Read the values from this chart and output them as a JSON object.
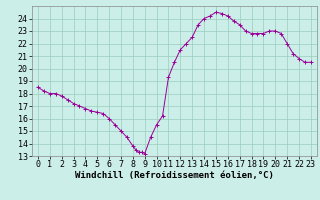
{
  "title": "",
  "xlabel": "Windchill (Refroidissement éolien,°C)",
  "background_color": "#cceee8",
  "line_color": "#990099",
  "marker_color": "#990099",
  "xlim": [
    -0.5,
    23.5
  ],
  "ylim": [
    13,
    25
  ],
  "yticks": [
    13,
    14,
    15,
    16,
    17,
    18,
    19,
    20,
    21,
    22,
    23,
    24
  ],
  "xticks": [
    0,
    1,
    2,
    3,
    4,
    5,
    6,
    7,
    8,
    9,
    10,
    11,
    12,
    13,
    14,
    15,
    16,
    17,
    18,
    19,
    20,
    21,
    22,
    23
  ],
  "data_x": [
    0,
    0.5,
    1,
    1.5,
    2,
    2.5,
    3,
    3.5,
    4,
    4.5,
    5,
    5.5,
    6,
    6.5,
    7,
    7.5,
    8,
    8.25,
    8.5,
    8.75,
    9,
    9.5,
    10,
    10.5,
    11,
    11.5,
    12,
    12.5,
    13,
    13.5,
    14,
    14.5,
    15,
    15.5,
    16,
    16.5,
    17,
    17.5,
    18,
    18.5,
    19,
    19.5,
    20,
    20.5,
    21,
    21.5,
    22,
    22.5,
    23
  ],
  "data_y": [
    18.5,
    18.2,
    18.0,
    18.0,
    17.8,
    17.5,
    17.2,
    17.0,
    16.8,
    16.6,
    16.5,
    16.4,
    16.0,
    15.5,
    15.0,
    14.5,
    13.8,
    13.5,
    13.3,
    13.3,
    13.2,
    14.5,
    15.5,
    16.2,
    19.3,
    20.5,
    21.5,
    22.0,
    22.5,
    23.5,
    24.0,
    24.2,
    24.5,
    24.4,
    24.2,
    23.8,
    23.5,
    23.0,
    22.8,
    22.8,
    22.8,
    23.0,
    23.0,
    22.8,
    22.0,
    21.2,
    20.8,
    20.5,
    20.5
  ],
  "grid_color": "#99ccbb",
  "border_color": "#888888",
  "xlabel_fontsize": 6.5,
  "tick_fontsize": 6,
  "fig_width": 3.2,
  "fig_height": 2.0,
  "dpi": 100
}
